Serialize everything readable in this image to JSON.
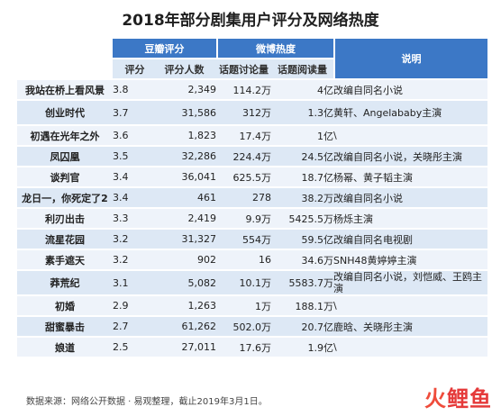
{
  "title": "2018年部分剧集用户评分及网络热度",
  "headers": {
    "douban": "豆瓣评分",
    "weibo": "微博热度",
    "note": "说明",
    "score": "评分",
    "raters": "评分人数",
    "topic_discussion": "话题讨论量",
    "topic_reads": "话题阅读量"
  },
  "rows": [
    {
      "name": "我站在桥上看风景",
      "score": "3.8",
      "raters": "2,349",
      "discussion": "114.2万",
      "reads": "4亿",
      "note": "改编自同名小说"
    },
    {
      "name": "创业时代",
      "score": "3.7",
      "raters": "31,586",
      "discussion": "312万",
      "reads": "1.3亿",
      "note": "黄轩、Angelababy主演"
    },
    {
      "name": "初遇在光年之外",
      "score": "3.6",
      "raters": "1,823",
      "discussion": "17.4万",
      "reads": "1亿",
      "note": "\\"
    },
    {
      "name": "凤囚凰",
      "score": "3.5",
      "raters": "32,286",
      "discussion": "224.4万",
      "reads": "24.5亿",
      "note": "改编自同名小说，关晓彤主演"
    },
    {
      "name": "谈判官",
      "score": "3.4",
      "raters": "36,041",
      "discussion": "625.5万",
      "reads": "18.7亿",
      "note": "杨幂、黄子韬主演"
    },
    {
      "name": "龙日一，你死定了2",
      "score": "3.4",
      "raters": "461",
      "discussion": "278",
      "reads": "38.2万",
      "note": "改编自同名小说"
    },
    {
      "name": "利刃出击",
      "score": "3.3",
      "raters": "2,419",
      "discussion": "9.9万",
      "reads": "5425.5万",
      "note": "杨烁主演"
    },
    {
      "name": "流星花园",
      "score": "3.2",
      "raters": "31,327",
      "discussion": "554万",
      "reads": "59.5亿",
      "note": "改编自同名电视剧"
    },
    {
      "name": "素手遮天",
      "score": "3.2",
      "raters": "902",
      "discussion": "16",
      "reads": "34.6万",
      "note": "SNH48黄婷婷主演"
    },
    {
      "name": "莽荒纪",
      "score": "3.1",
      "raters": "5,082",
      "discussion": "10.1万",
      "reads": "5583.7万",
      "note": "改编自同名小说，刘恺威、王鸥主演"
    },
    {
      "name": "初婚",
      "score": "2.9",
      "raters": "1,263",
      "discussion": "1万",
      "reads": "188.1万",
      "note": "\\"
    },
    {
      "name": "甜蜜暴击",
      "score": "2.7",
      "raters": "61,262",
      "discussion": "502.0万",
      "reads": "20.7亿",
      "note": "鹿晗、关晓彤主演"
    },
    {
      "name": "娘道",
      "score": "2.5",
      "raters": "27,011",
      "discussion": "17.6万",
      "reads": "1.9亿",
      "note": "\\"
    }
  ],
  "footer": "数据来源：网络公开数据 · 易观整理，截止2019年3月1日。",
  "watermark": {
    "part1": "火",
    "part2": "鲤鱼"
  }
}
